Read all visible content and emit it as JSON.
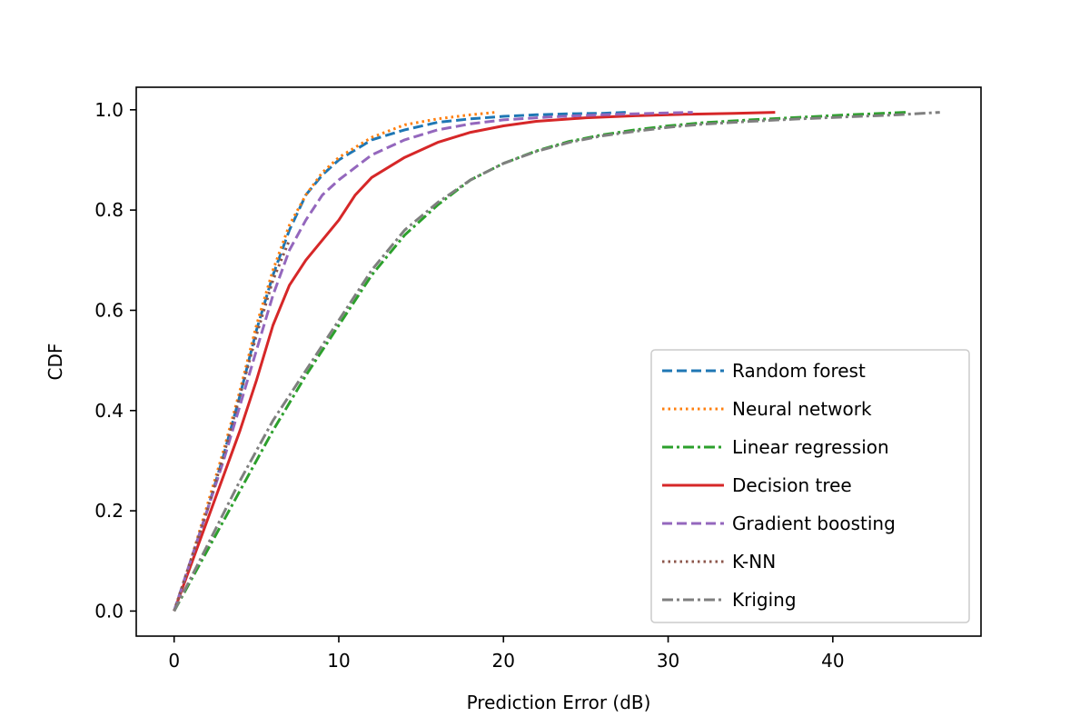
{
  "chart_data": {
    "type": "line",
    "title": "",
    "xlabel": "Prediction Error (dB)",
    "ylabel": "CDF",
    "xlim": [
      -2.3,
      49
    ],
    "ylim": [
      -0.05,
      1.045
    ],
    "xticks": [
      0,
      10,
      20,
      30,
      40
    ],
    "yticks": [
      0.0,
      0.2,
      0.4,
      0.6,
      0.8,
      1.0
    ],
    "grid": false,
    "legend_position": "lower-right",
    "series": [
      {
        "name": "Random forest",
        "color": "#1f77b4",
        "dash": "dashed",
        "x": [
          0,
          1,
          2,
          3,
          4,
          5,
          6,
          7,
          8,
          9,
          10,
          12,
          14,
          16,
          18,
          20,
          22,
          24,
          26,
          27.5
        ],
        "y": [
          0.0,
          0.1,
          0.2,
          0.31,
          0.43,
          0.56,
          0.67,
          0.76,
          0.83,
          0.87,
          0.9,
          0.94,
          0.96,
          0.975,
          0.982,
          0.987,
          0.99,
          0.992,
          0.993,
          0.995
        ]
      },
      {
        "name": "Neural network",
        "color": "#ff7f0e",
        "dash": "dotted",
        "x": [
          0,
          1,
          2,
          3,
          4,
          5,
          6,
          7,
          8,
          9,
          10,
          12,
          14,
          16,
          18,
          19.5
        ],
        "y": [
          0.0,
          0.1,
          0.21,
          0.32,
          0.44,
          0.57,
          0.68,
          0.77,
          0.83,
          0.875,
          0.905,
          0.945,
          0.97,
          0.982,
          0.99,
          0.995
        ]
      },
      {
        "name": "Linear regression",
        "color": "#2ca02c",
        "dash": "dashdot",
        "x": [
          0,
          2,
          4,
          6,
          8,
          10,
          12,
          14,
          16,
          18,
          20,
          22,
          24,
          26,
          28,
          30,
          32,
          35,
          38,
          41,
          44.5
        ],
        "y": [
          0.0,
          0.12,
          0.24,
          0.36,
          0.47,
          0.57,
          0.67,
          0.75,
          0.81,
          0.86,
          0.893,
          0.918,
          0.937,
          0.95,
          0.96,
          0.968,
          0.974,
          0.98,
          0.985,
          0.99,
          0.995
        ]
      },
      {
        "name": "Decision tree",
        "color": "#d62728",
        "dash": "solid",
        "x": [
          0,
          1,
          2,
          3,
          4,
          5,
          6,
          7,
          8,
          9,
          10,
          11,
          12,
          14,
          16,
          18,
          20,
          22,
          25,
          28,
          31,
          34,
          36.5
        ],
        "y": [
          0.0,
          0.09,
          0.18,
          0.27,
          0.36,
          0.46,
          0.57,
          0.65,
          0.7,
          0.74,
          0.78,
          0.83,
          0.865,
          0.905,
          0.935,
          0.955,
          0.968,
          0.977,
          0.984,
          0.988,
          0.991,
          0.993,
          0.995
        ]
      },
      {
        "name": "Gradient boosting",
        "color": "#9467bd",
        "dash": "dashed",
        "x": [
          0,
          1,
          2,
          3,
          4,
          5,
          6,
          7,
          8,
          9,
          10,
          12,
          14,
          16,
          18,
          20,
          23,
          26,
          29,
          31.5
        ],
        "y": [
          0.0,
          0.1,
          0.2,
          0.3,
          0.41,
          0.52,
          0.63,
          0.72,
          0.78,
          0.83,
          0.86,
          0.91,
          0.94,
          0.96,
          0.972,
          0.98,
          0.986,
          0.99,
          0.993,
          0.995
        ]
      },
      {
        "name": "K-NN",
        "color": "#8c564b",
        "dash": "dotted",
        "x": [
          0,
          1,
          2,
          3,
          4,
          5,
          6,
          7
        ],
        "y": [
          0.0,
          0.1,
          0.2,
          0.31,
          0.43,
          0.55,
          0.66,
          0.74
        ]
      },
      {
        "name": "Kriging",
        "color": "#7f7f7f",
        "dash": "dashdot",
        "x": [
          0,
          2,
          4,
          6,
          8,
          10,
          12,
          14,
          16,
          18,
          20,
          22,
          24,
          26,
          28,
          30,
          32,
          35,
          38,
          41,
          44,
          46.5
        ],
        "y": [
          0.0,
          0.13,
          0.26,
          0.38,
          0.48,
          0.58,
          0.68,
          0.76,
          0.815,
          0.86,
          0.893,
          0.917,
          0.935,
          0.948,
          0.957,
          0.965,
          0.971,
          0.977,
          0.982,
          0.986,
          0.99,
          0.995
        ]
      }
    ]
  }
}
